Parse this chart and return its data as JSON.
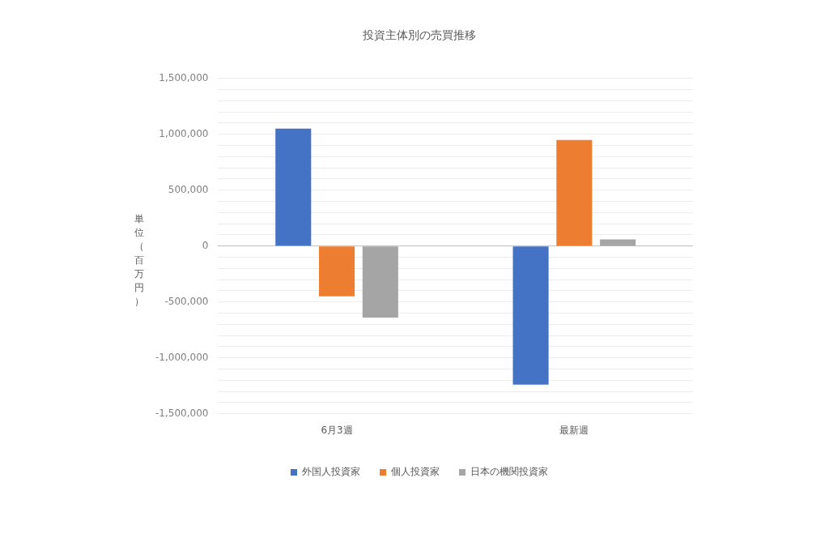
{
  "chart_data": {
    "type": "bar",
    "title": "投資主体別の売買推移",
    "ylabel": "単位（百万円）",
    "categories": [
      "6月3週",
      "最新週"
    ],
    "series": [
      {
        "name": "外国人投資家",
        "color": "#4472c4",
        "values": [
          1050000,
          -1240000
        ]
      },
      {
        "name": "個人投資家",
        "color": "#ed7d31",
        "values": [
          -450000,
          950000
        ]
      },
      {
        "name": "日本の機関投資家",
        "color": "#a5a5a5",
        "values": [
          -640000,
          60000
        ]
      }
    ],
    "ylim": [
      -1500000,
      1500000
    ],
    "yticks": [
      {
        "value": -1500000,
        "label": "-1,500,000"
      },
      {
        "value": -1400000,
        "label": null
      },
      {
        "value": -1300000,
        "label": null
      },
      {
        "value": -1200000,
        "label": null
      },
      {
        "value": -1100000,
        "label": null
      },
      {
        "value": -1000000,
        "label": "-1,000,000"
      },
      {
        "value": -900000,
        "label": null
      },
      {
        "value": -800000,
        "label": null
      },
      {
        "value": -700000,
        "label": null
      },
      {
        "value": -600000,
        "label": null
      },
      {
        "value": -500000,
        "label": "-500,000"
      },
      {
        "value": -400000,
        "label": null
      },
      {
        "value": -300000,
        "label": null
      },
      {
        "value": -200000,
        "label": null
      },
      {
        "value": -100000,
        "label": null
      },
      {
        "value": 0,
        "label": "0"
      },
      {
        "value": 100000,
        "label": null
      },
      {
        "value": 200000,
        "label": null
      },
      {
        "value": 300000,
        "label": null
      },
      {
        "value": 400000,
        "label": null
      },
      {
        "value": 500000,
        "label": "500,000"
      },
      {
        "value": 600000,
        "label": null
      },
      {
        "value": 700000,
        "label": null
      },
      {
        "value": 800000,
        "label": null
      },
      {
        "value": 900000,
        "label": null
      },
      {
        "value": 1000000,
        "label": "1,000,000"
      },
      {
        "value": 1100000,
        "label": null
      },
      {
        "value": 1200000,
        "label": null
      },
      {
        "value": 1300000,
        "label": null
      },
      {
        "value": 1400000,
        "label": null
      },
      {
        "value": 1500000,
        "label": "1,500,000"
      }
    ],
    "grid": "y",
    "legend": "bottom"
  }
}
